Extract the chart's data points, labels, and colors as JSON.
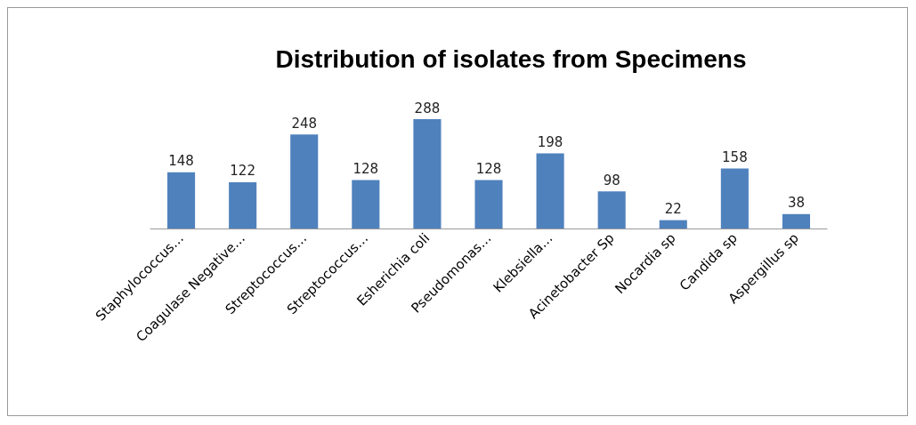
{
  "chart_data": {
    "type": "bar",
    "title": "Distribution of isolates from Specimens",
    "categories": [
      "Staphylococcus…",
      "Coagulase Negative…",
      "Streptococcus…",
      "Streptococcus…",
      "Esherichia coli",
      "Pseudomonas…",
      "Klebsiella…",
      "Acinetobacter Sp",
      "Nocardia sp",
      "Candida sp",
      "Aspergillus sp"
    ],
    "values": [
      148,
      122,
      248,
      128,
      288,
      128,
      198,
      98,
      22,
      158,
      38
    ],
    "color": "#4f81bd",
    "data_labels": true
  }
}
